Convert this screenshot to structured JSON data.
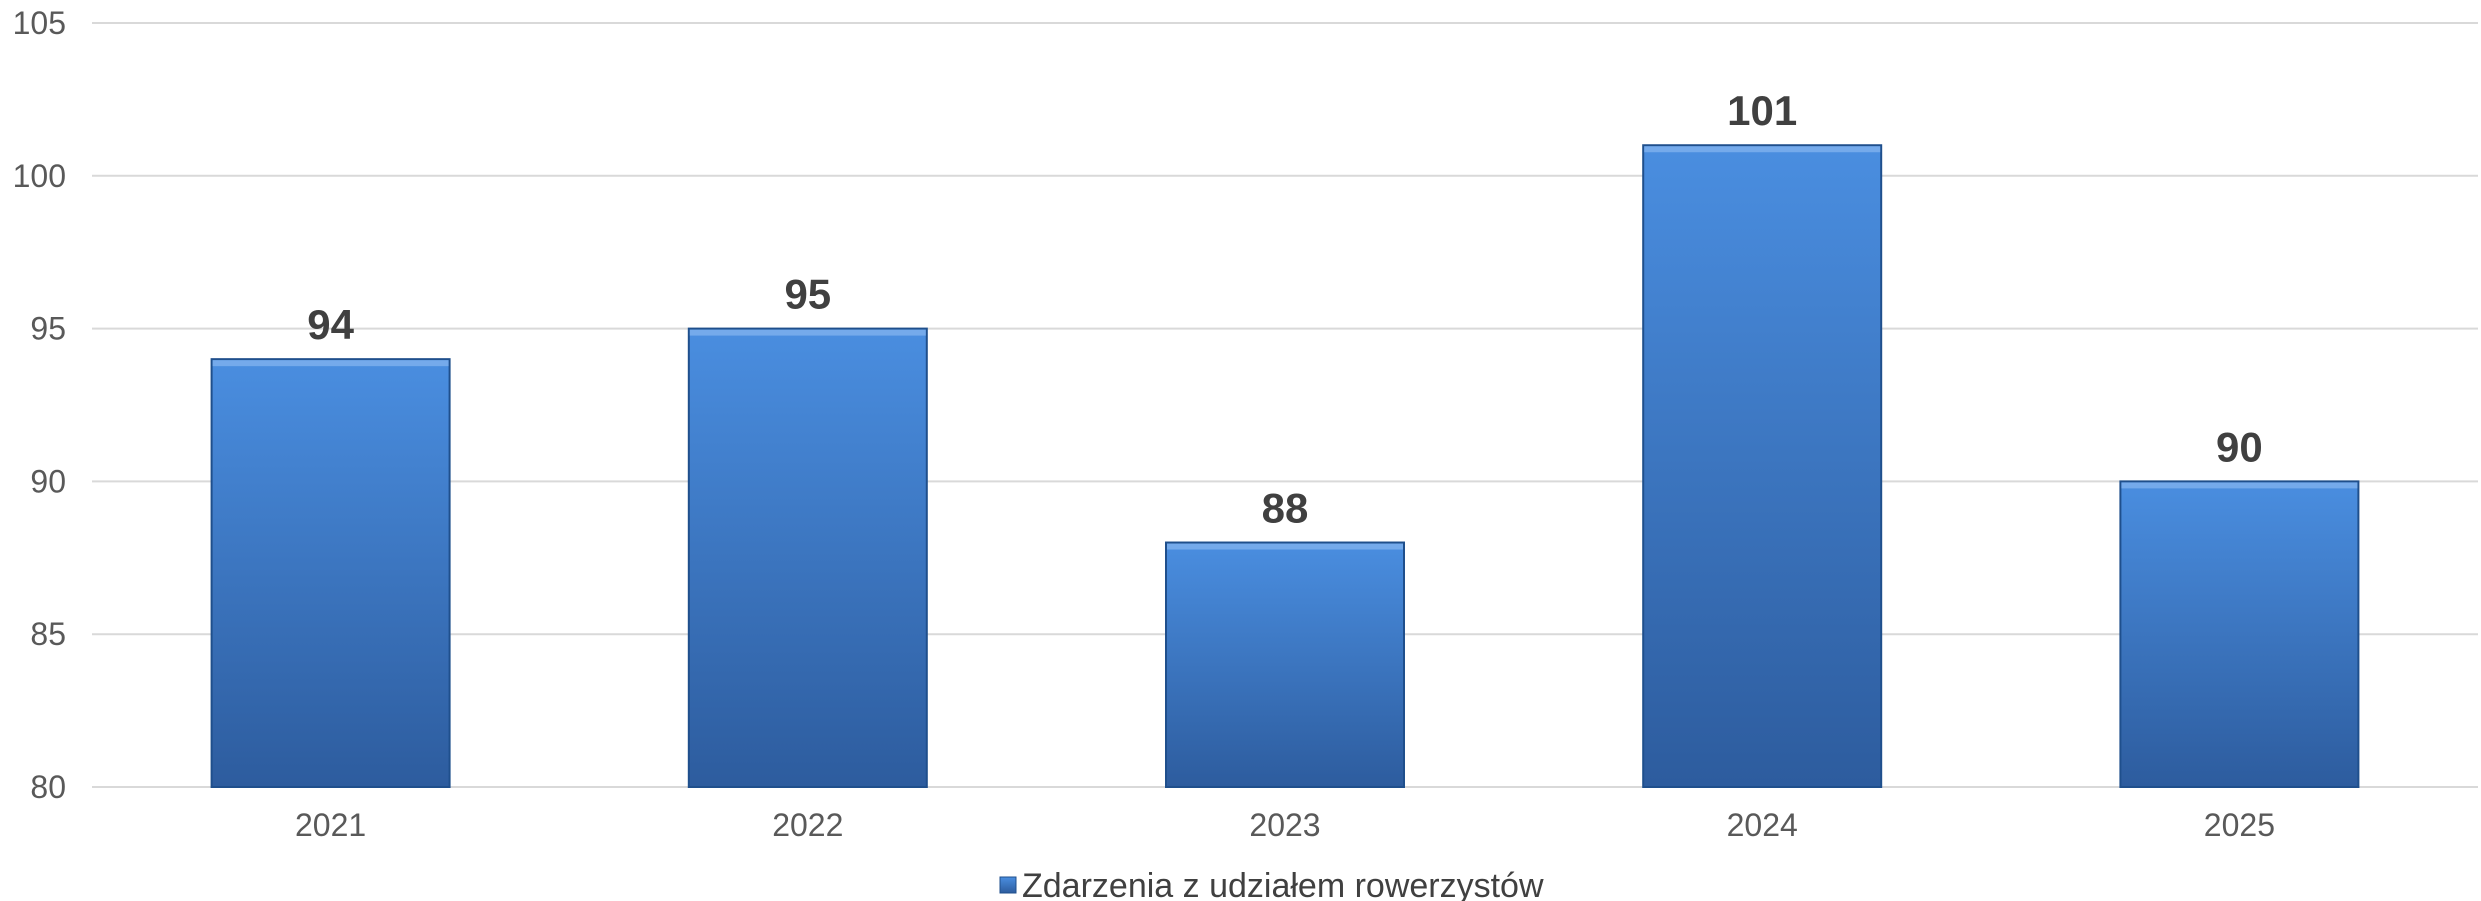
{
  "chart_data": {
    "type": "bar",
    "categories": [
      "2021",
      "2022",
      "2023",
      "2024",
      "2025"
    ],
    "series": [
      {
        "name": "Zdarzenia z udziałem rowerzystów",
        "values": [
          94,
          95,
          88,
          101,
          90
        ]
      }
    ],
    "ylim": [
      80,
      105
    ],
    "yticks": [
      80,
      85,
      90,
      95,
      100,
      105
    ],
    "grid": true,
    "legend_position": "bottom",
    "data_labels": true,
    "colors": {
      "bar_top": "#4a8ee0",
      "bar_bottom": "#2d5c9e",
      "bar_edge": "#1f4f8c",
      "grid": "#d9d9d9"
    }
  }
}
